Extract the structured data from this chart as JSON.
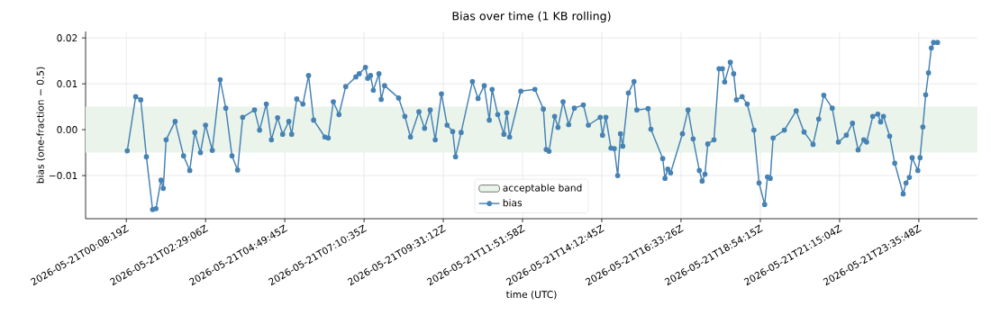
{
  "chart_data": {
    "type": "line",
    "title": "Bias over time (1 KB rolling)",
    "xlabel": "time (UTC)",
    "ylabel": "bias (one-fraction − 0.5)",
    "xlim": [
      "2026-05-20T22:56",
      "2026-05-22T01:20"
    ],
    "ylim": [
      -0.0194,
      0.0214
    ],
    "xticks": [
      {
        "value": "2026-05-21T00:08:19",
        "label": "2026-05-21T00:08:19Z"
      },
      {
        "value": "2026-05-21T02:29:06",
        "label": "2026-05-21T02:29:06Z"
      },
      {
        "value": "2026-05-21T04:49:45",
        "label": "2026-05-21T04:49:45Z"
      },
      {
        "value": "2026-05-21T07:10:35",
        "label": "2026-05-21T07:10:35Z"
      },
      {
        "value": "2026-05-21T09:31:12",
        "label": "2026-05-21T09:31:12Z"
      },
      {
        "value": "2026-05-21T11:51:58",
        "label": "2026-05-21T11:51:58Z"
      },
      {
        "value": "2026-05-21T14:12:45",
        "label": "2026-05-21T14:12:45Z"
      },
      {
        "value": "2026-05-21T16:33:26",
        "label": "2026-05-21T16:33:26Z"
      },
      {
        "value": "2026-05-21T18:54:15",
        "label": "2026-05-21T18:54:15Z"
      },
      {
        "value": "2026-05-21T21:15:04",
        "label": "2026-05-21T21:15:04Z"
      },
      {
        "value": "2026-05-21T23:35:48",
        "label": "2026-05-21T23:35:48Z"
      }
    ],
    "yticks": [
      {
        "value": -0.01,
        "label": "−0.01"
      },
      {
        "value": 0,
        "label": "0.00"
      },
      {
        "value": 0.01,
        "label": "0.01"
      },
      {
        "value": 0.02,
        "label": "0.02"
      }
    ],
    "bands": [
      {
        "axis": "y",
        "from": -0.005,
        "to": 0.005,
        "label": "acceptable band",
        "color": "#eaf4ea"
      }
    ],
    "grid": true,
    "legend": "bottom",
    "marker": "circle",
    "line_style": "solid",
    "series": [
      {
        "name": "bias",
        "color": "#4682b4",
        "x": [
          "2026-05-21T00:10",
          "2026-05-21T00:25",
          "2026-05-21T00:34",
          "2026-05-21T00:44",
          "2026-05-21T00:55",
          "2026-05-21T01:01",
          "2026-05-21T01:10",
          "2026-05-21T01:14",
          "2026-05-21T01:19",
          "2026-05-21T01:35",
          "2026-05-21T01:50",
          "2026-05-21T02:01",
          "2026-05-21T02:10",
          "2026-05-21T02:20",
          "2026-05-21T02:29",
          "2026-05-21T02:41",
          "2026-05-21T02:55",
          "2026-05-21T03:05",
          "2026-05-21T03:16",
          "2026-05-21T03:26",
          "2026-05-21T03:35",
          "2026-05-21T03:56",
          "2026-05-21T04:05",
          "2026-05-21T04:17",
          "2026-05-21T04:26",
          "2026-05-21T04:37",
          "2026-05-21T04:46",
          "2026-05-21T04:57",
          "2026-05-21T05:02",
          "2026-05-21T05:11",
          "2026-05-21T05:22",
          "2026-05-21T05:32",
          "2026-05-21T05:41",
          "2026-05-21T06:01",
          "2026-05-21T06:07",
          "2026-05-21T06:16",
          "2026-05-21T06:26",
          "2026-05-21T06:38",
          "2026-05-21T06:56",
          "2026-05-21T07:02",
          "2026-05-21T07:13",
          "2026-05-21T07:17",
          "2026-05-21T07:22",
          "2026-05-21T07:27",
          "2026-05-21T07:37",
          "2026-05-21T07:41",
          "2026-05-21T07:47",
          "2026-05-21T08:12",
          "2026-05-21T08:23",
          "2026-05-21T08:33",
          "2026-05-21T08:48",
          "2026-05-21T08:58",
          "2026-05-21T09:08",
          "2026-05-21T09:17",
          "2026-05-21T09:28",
          "2026-05-21T09:38",
          "2026-05-21T09:48",
          "2026-05-21T09:53",
          "2026-05-21T10:03",
          "2026-05-21T10:23",
          "2026-05-21T10:33",
          "2026-05-21T10:44",
          "2026-05-21T10:53",
          "2026-05-21T10:58",
          "2026-05-21T11:08",
          "2026-05-21T11:19",
          "2026-05-21T11:24",
          "2026-05-21T11:29",
          "2026-05-21T11:49",
          "2026-05-21T12:14",
          "2026-05-21T12:29",
          "2026-05-21T12:34",
          "2026-05-21T12:39",
          "2026-05-21T12:49",
          "2026-05-21T12:55",
          "2026-05-21T13:04",
          "2026-05-21T13:14",
          "2026-05-21T13:24",
          "2026-05-21T13:40",
          "2026-05-21T13:49",
          "2026-05-21T14:10",
          "2026-05-21T14:14",
          "2026-05-21T14:20",
          "2026-05-21T14:29",
          "2026-05-21T14:35",
          "2026-05-21T14:41",
          "2026-05-21T14:46",
          "2026-05-21T14:50",
          "2026-05-21T15:00",
          "2026-05-21T15:10",
          "2026-05-21T15:15",
          "2026-05-21T15:35",
          "2026-05-21T15:40",
          "2026-05-21T16:01",
          "2026-05-21T16:05",
          "2026-05-21T16:10",
          "2026-05-21T16:15",
          "2026-05-21T16:36",
          "2026-05-21T16:46",
          "2026-05-21T16:55",
          "2026-05-21T17:06",
          "2026-05-21T17:11",
          "2026-05-21T17:16",
          "2026-05-21T17:21",
          "2026-05-21T17:32",
          "2026-05-21T17:41",
          "2026-05-21T17:47",
          "2026-05-21T17:51",
          "2026-05-21T18:01",
          "2026-05-21T18:07",
          "2026-05-21T18:12",
          "2026-05-21T18:22",
          "2026-05-21T18:31",
          "2026-05-21T18:43",
          "2026-05-21T18:52",
          "2026-05-21T19:02",
          "2026-05-21T19:07",
          "2026-05-21T19:12",
          "2026-05-21T19:17",
          "2026-05-21T19:37",
          "2026-05-21T19:58",
          "2026-05-21T20:12",
          "2026-05-21T20:28",
          "2026-05-21T20:38",
          "2026-05-21T20:47",
          "2026-05-21T21:02",
          "2026-05-21T21:13",
          "2026-05-21T21:27",
          "2026-05-21T21:38",
          "2026-05-21T21:48",
          "2026-05-21T21:58",
          "2026-05-21T22:03",
          "2026-05-21T22:14",
          "2026-05-21T22:23",
          "2026-05-21T22:28",
          "2026-05-21T22:33",
          "2026-05-21T22:44",
          "2026-05-21T22:53",
          "2026-05-21T23:08",
          "2026-05-21T23:13",
          "2026-05-21T23:19",
          "2026-05-21T23:24",
          "2026-05-21T23:34",
          "2026-05-21T23:38",
          "2026-05-21T23:43",
          "2026-05-21T23:48",
          "2026-05-21T23:53",
          "2026-05-21T23:58",
          "2026-05-22T00:02",
          "2026-05-22T00:09"
        ],
        "values": [
          -0.0046,
          0.0072,
          0.0065,
          -0.0059,
          -0.0174,
          -0.0172,
          -0.011,
          -0.0128,
          -0.0022,
          0.0018,
          -0.0057,
          -0.0089,
          -0.0006,
          -0.005,
          0.001,
          -0.0045,
          0.0109,
          0.0047,
          -0.0057,
          -0.0088,
          0.0027,
          0.0043,
          -0.0001,
          0.0056,
          -0.0022,
          0.0026,
          -0.001,
          0.0018,
          -0.001,
          0.0067,
          0.0056,
          0.0118,
          0.0021,
          -0.0016,
          -0.0018,
          0.0061,
          0.0033,
          0.0094,
          0.0115,
          0.0122,
          0.0136,
          0.0112,
          0.0118,
          0.0086,
          0.0122,
          0.0066,
          0.0096,
          0.0069,
          0.0029,
          -0.0016,
          0.0039,
          0.0003,
          0.0043,
          -0.0022,
          0.0078,
          0.001,
          -0.0004,
          -0.0059,
          -0.0006,
          0.0105,
          0.0068,
          0.0096,
          0.0021,
          0.0088,
          0.0033,
          -0.001,
          0.0037,
          -0.0016,
          0.0084,
          0.0088,
          0.0045,
          -0.0043,
          -0.0047,
          0.0029,
          0.0005,
          0.0061,
          0.0011,
          0.0047,
          0.0054,
          0.001,
          0.0027,
          -0.0012,
          0.0027,
          -0.004,
          -0.0041,
          -0.01,
          -0.0009,
          -0.0036,
          0.008,
          0.0105,
          0.0043,
          0.0046,
          0.0001,
          -0.0063,
          -0.0106,
          -0.0086,
          -0.0094,
          -0.0009,
          0.0043,
          -0.002,
          -0.0089,
          -0.0112,
          -0.0097,
          -0.0031,
          -0.0022,
          0.0133,
          0.0133,
          0.0104,
          0.0147,
          0.0122,
          0.0065,
          0.0072,
          0.0056,
          -0.0001,
          -0.0116,
          -0.0163,
          -0.0103,
          -0.0106,
          -0.0018,
          -0.0001,
          0.0041,
          -0.0005,
          -0.0032,
          0.0023,
          0.0075,
          0.0047,
          -0.0027,
          -0.0012,
          0.0014,
          -0.0044,
          -0.0022,
          -0.0027,
          0.0029,
          0.0034,
          0.0017,
          0.0029,
          -0.0014,
          -0.0073,
          -0.014,
          -0.0116,
          -0.0104,
          -0.0061,
          -0.0089,
          -0.0061,
          0.0006,
          0.0076,
          0.0124,
          0.0178,
          0.019,
          0.019
        ]
      }
    ]
  }
}
